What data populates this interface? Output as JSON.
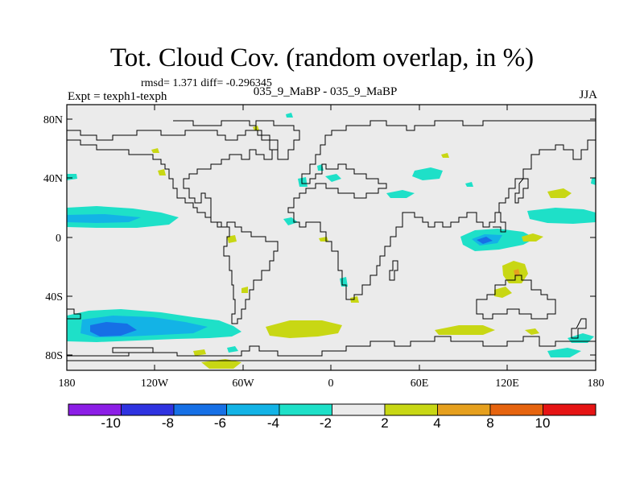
{
  "title": "Tot. Cloud Cov. (random overlap, in %)",
  "stats": "rmsd= 1.371 diff= -0.296345",
  "experiment": "Expt = texph1-texph",
  "case": "035_9_MaBP - 035_9_MaBP",
  "season": "JJA",
  "lat_ticks": [
    "80N",
    "40N",
    "0",
    "40S",
    "80S"
  ],
  "lon_ticks": [
    "180",
    "120W",
    "60W",
    "0",
    "60E",
    "120E",
    "180"
  ],
  "colorbar": {
    "labels": [
      "-10",
      "-8",
      "-6",
      "-4",
      "-2",
      "2",
      "4",
      "8",
      "10"
    ],
    "colors": [
      "#8c1ee6",
      "#2f33e0",
      "#1670e6",
      "#13b3e6",
      "#1ee0c8",
      "#ebebeb",
      "#c8d714",
      "#e6a01e",
      "#e6640f",
      "#e61414"
    ]
  }
}
